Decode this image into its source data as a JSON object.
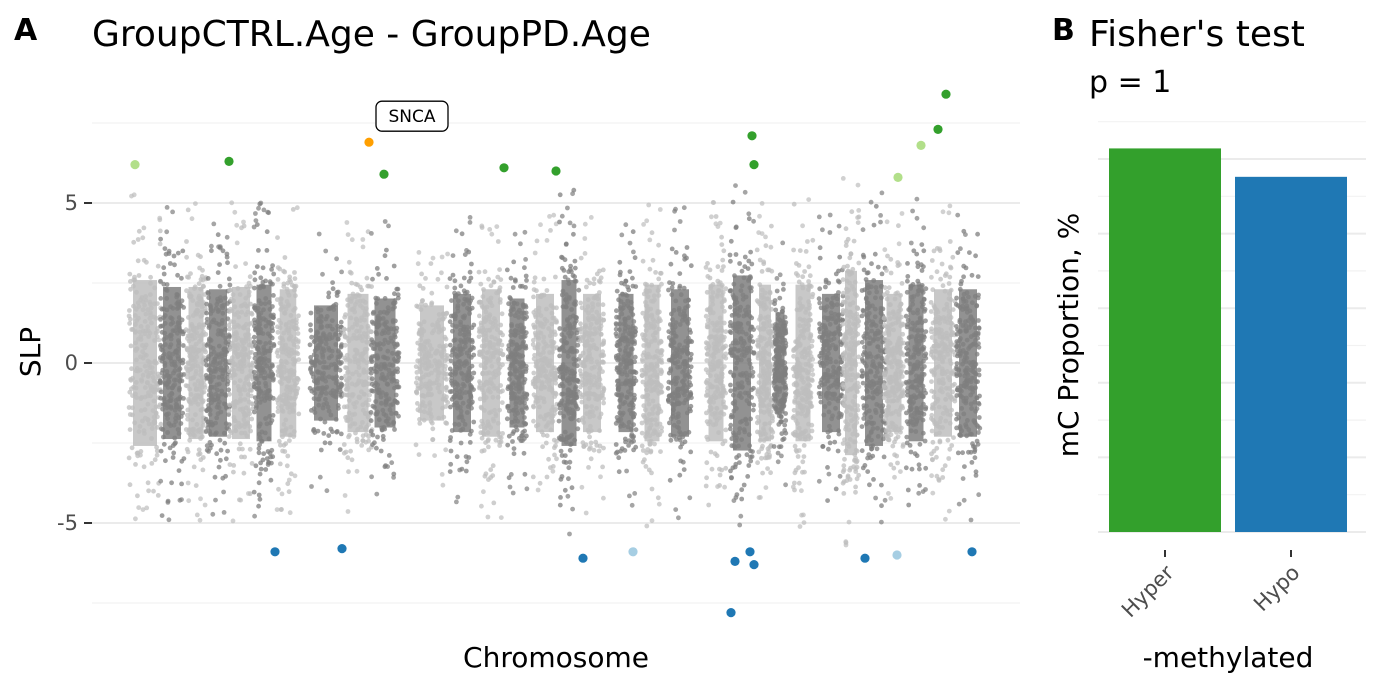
{
  "panelA": {
    "letter": "A",
    "title": "GroupCTRL.Age - GroupPD.Age",
    "xlabel": "Chromosome",
    "ylabel": "SLP",
    "chart_data": {
      "type": "scatter",
      "title": "GroupCTRL.Age - GroupPD.Age",
      "xlabel": "Chromosome",
      "ylabel": "SLP",
      "ylim": [
        -7.5,
        7.5
      ],
      "yticks": [
        -5,
        0,
        5
      ],
      "grid": true,
      "background_point_colors": [
        "#bebebe",
        "#7f7f7f"
      ],
      "background_bands": [
        {
          "center": 145,
          "halfwidth": 16,
          "spread": 3.6
        },
        {
          "center": 172,
          "halfwidth": 12,
          "spread": 3.3
        },
        {
          "center": 196,
          "halfwidth": 10,
          "spread": 3.3
        },
        {
          "center": 218,
          "halfwidth": 12,
          "spread": 3.2
        },
        {
          "center": 241,
          "halfwidth": 12,
          "spread": 3.3
        },
        {
          "center": 264,
          "halfwidth": 10,
          "spread": 3.4
        },
        {
          "center": 288,
          "halfwidth": 11,
          "spread": 3.2
        },
        {
          "center": 326,
          "halfwidth": 16,
          "spread": 2.5
        },
        {
          "center": 358,
          "halfwidth": 14,
          "spread": 3.0
        },
        {
          "center": 385,
          "halfwidth": 14,
          "spread": 2.8
        },
        {
          "center": 432,
          "halfwidth": 16,
          "spread": 2.5
        },
        {
          "center": 462,
          "halfwidth": 12,
          "spread": 3.0
        },
        {
          "center": 491,
          "halfwidth": 12,
          "spread": 3.2
        },
        {
          "center": 517,
          "halfwidth": 10,
          "spread": 2.8
        },
        {
          "center": 545,
          "halfwidth": 12,
          "spread": 3.0
        },
        {
          "center": 569,
          "halfwidth": 10,
          "spread": 3.6
        },
        {
          "center": 592,
          "halfwidth": 12,
          "spread": 3.0
        },
        {
          "center": 626,
          "halfwidth": 10,
          "spread": 3.0
        },
        {
          "center": 652,
          "halfwidth": 10,
          "spread": 3.4
        },
        {
          "center": 680,
          "halfwidth": 12,
          "spread": 3.2
        },
        {
          "center": 716,
          "halfwidth": 10,
          "spread": 3.4
        },
        {
          "center": 742,
          "halfwidth": 12,
          "spread": 3.8
        },
        {
          "center": 765,
          "halfwidth": 8,
          "spread": 3.4
        },
        {
          "center": 780,
          "halfwidth": 6,
          "spread": 2.2
        },
        {
          "center": 803,
          "halfwidth": 10,
          "spread": 3.4
        },
        {
          "center": 831,
          "halfwidth": 12,
          "spread": 3.0
        },
        {
          "center": 851,
          "halfwidth": 8,
          "spread": 4.0
        },
        {
          "center": 874,
          "halfwidth": 12,
          "spread": 3.6
        },
        {
          "center": 894,
          "halfwidth": 10,
          "spread": 3.0
        },
        {
          "center": 916,
          "halfwidth": 10,
          "spread": 3.4
        },
        {
          "center": 943,
          "halfwidth": 12,
          "spread": 3.2
        },
        {
          "center": 968,
          "halfwidth": 12,
          "spread": 3.2
        }
      ],
      "highlight_points": [
        {
          "x": 135,
          "y": 6.2,
          "color": "#b2df8a"
        },
        {
          "x": 229,
          "y": 6.3,
          "color": "#33a02c"
        },
        {
          "x": 369,
          "y": 6.9,
          "color": "#ff9f00"
        },
        {
          "x": 384,
          "y": 5.9,
          "color": "#33a02c"
        },
        {
          "x": 504,
          "y": 6.1,
          "color": "#33a02c"
        },
        {
          "x": 556,
          "y": 6.0,
          "color": "#33a02c"
        },
        {
          "x": 752,
          "y": 7.1,
          "color": "#33a02c"
        },
        {
          "x": 754,
          "y": 6.2,
          "color": "#33a02c"
        },
        {
          "x": 898,
          "y": 5.8,
          "color": "#b2df8a"
        },
        {
          "x": 921,
          "y": 6.8,
          "color": "#b2df8a"
        },
        {
          "x": 938,
          "y": 7.3,
          "color": "#33a02c"
        },
        {
          "x": 946,
          "y": 8.4,
          "color": "#33a02c"
        },
        {
          "x": 275,
          "y": -5.9,
          "color": "#1f78b4"
        },
        {
          "x": 342,
          "y": -5.8,
          "color": "#1f78b4"
        },
        {
          "x": 583,
          "y": -6.1,
          "color": "#1f78b4"
        },
        {
          "x": 633,
          "y": -5.9,
          "color": "#a6cee3"
        },
        {
          "x": 735,
          "y": -6.2,
          "color": "#1f78b4"
        },
        {
          "x": 750,
          "y": -5.9,
          "color": "#1f78b4"
        },
        {
          "x": 754,
          "y": -6.3,
          "color": "#1f78b4"
        },
        {
          "x": 731,
          "y": -7.8,
          "color": "#1f78b4"
        },
        {
          "x": 865,
          "y": -6.1,
          "color": "#1f78b4"
        },
        {
          "x": 897,
          "y": -6.0,
          "color": "#a6cee3"
        },
        {
          "x": 972,
          "y": -5.9,
          "color": "#1f78b4"
        }
      ],
      "annotations": [
        {
          "label": "SNCA",
          "x": 369,
          "y": 6.9
        }
      ]
    }
  },
  "panelB": {
    "letter": "B",
    "title": "Fisher's test",
    "subtitle": "p = 1",
    "xlabel": "-methylated",
    "ylabel": "mC Proportion, %",
    "chart_data": {
      "type": "bar",
      "title": "Fisher's test",
      "subtitle": "p = 1",
      "xlabel": "-methylated",
      "ylabel": "mC Proportion, %",
      "categories": [
        "Hyper",
        "Hypo"
      ],
      "values": [
        54,
        50
      ],
      "colors": [
        "#33a02c",
        "#1f78b4"
      ],
      "ylim": [
        0,
        58
      ],
      "grid": true
    }
  }
}
